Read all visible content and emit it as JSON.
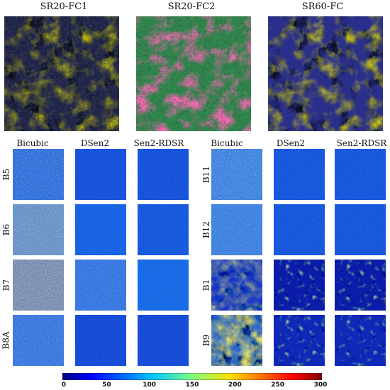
{
  "top_panels": [
    {
      "title": "SR20-FC1"
    },
    {
      "title": "SR20-FC2"
    },
    {
      "title": "SR60-FC"
    }
  ],
  "left_group": {
    "columns": [
      "Bicubic",
      "DSen2",
      "Sen2-RDSR"
    ],
    "rows": [
      "B5",
      "B6",
      "B7",
      "B8A"
    ]
  },
  "right_group": {
    "columns": [
      "Bicubic",
      "DSen2",
      "Sen2-RDSR"
    ],
    "rows": [
      "B11",
      "B12",
      "B1",
      "B9"
    ]
  },
  "colorbar": {
    "min": 0,
    "max": 300,
    "ticks": [
      "0",
      "50",
      "100",
      "150",
      "200",
      "250",
      "300"
    ],
    "colormap": "jet"
  }
}
